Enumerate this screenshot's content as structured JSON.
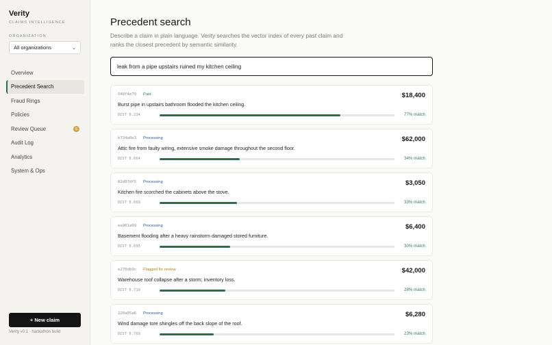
{
  "brand": {
    "name": "Verity",
    "subtitle": "CLAIMS INTELLIGENCE"
  },
  "organization": {
    "label": "ORGANIZATION",
    "selected": "All organizations"
  },
  "nav": [
    {
      "label": "Overview",
      "name": "sidebar-item-overview",
      "active": false
    },
    {
      "label": "Precedent Search",
      "name": "sidebar-item-precedent-search",
      "active": true
    },
    {
      "label": "Fraud Rings",
      "name": "sidebar-item-fraud-rings",
      "active": false
    },
    {
      "label": "Policies",
      "name": "sidebar-item-policies",
      "active": false
    },
    {
      "label": "Review Queue",
      "name": "sidebar-item-review-queue",
      "active": false,
      "badge": "6"
    },
    {
      "label": "Audit Log",
      "name": "sidebar-item-audit-log",
      "active": false
    },
    {
      "label": "Analytics",
      "name": "sidebar-item-analytics",
      "active": false
    },
    {
      "label": "System & Ops",
      "name": "sidebar-item-system-ops",
      "active": false
    }
  ],
  "new_claim_label": "+ New claim",
  "version": "Verity v0.1 · hackathon build",
  "page": {
    "title": "Precedent search",
    "description": "Describe a claim in plain language. Verity searches the vector index of every past claim and ranks the closest precedent by semantic similarity."
  },
  "search": {
    "value": "leak from a pipe upstairs ruined my kitchen ceiling"
  },
  "colors": {
    "accent": "#2e6b4c",
    "paid": "#2e7a50",
    "processing": "#2c5d8a",
    "flagged": "#b07d1e",
    "badge": "#d4a640"
  },
  "results": [
    {
      "id": "548f4e79",
      "status": "Paid",
      "status_color": "#2e7a50",
      "amount": "$18,400",
      "summary": "Burst pipe in upstairs bathroom flooded the kitchen ceiling.",
      "dist": "DIST 0.234",
      "match": "77% match",
      "match_pct": 77
    },
    {
      "id": "b734a0e3",
      "status": "Processing",
      "status_color": "#2c5d8a",
      "amount": "$62,000",
      "summary": "Attic fire from faulty wiring, extensive smoke damage throughout the second floor.",
      "dist": "DIST 0.664",
      "match": "34% match",
      "match_pct": 34
    },
    {
      "id": "82d07df5",
      "status": "Processing",
      "status_color": "#2c5d8a",
      "amount": "$3,050",
      "summary": "Kitchen fire scorched the cabinets above the stove.",
      "dist": "DIST 0.669",
      "match": "33% match",
      "match_pct": 33
    },
    {
      "id": "ea961a99",
      "status": "Processing",
      "status_color": "#2c5d8a",
      "amount": "$6,400",
      "summary": "Basement flooding after a heavy rainstorm damaged stored furniture.",
      "dist": "DIST 0.695",
      "match": "30% match",
      "match_pct": 30
    },
    {
      "id": "e270db9c",
      "status": "Flagged for review",
      "status_color": "#b07d1e",
      "amount": "$42,000",
      "summary": "Warehouse roof collapse after a storm; inventory loss.",
      "dist": "DIST 0.719",
      "match": "28% match",
      "match_pct": 28
    },
    {
      "id": "220a05a6",
      "status": "Processing",
      "status_color": "#2c5d8a",
      "amount": "$6,280",
      "summary": "Wind damage tore shingles off the back slope of the roof.",
      "dist": "DIST 0.769",
      "match": "23% match",
      "match_pct": 23
    }
  ]
}
